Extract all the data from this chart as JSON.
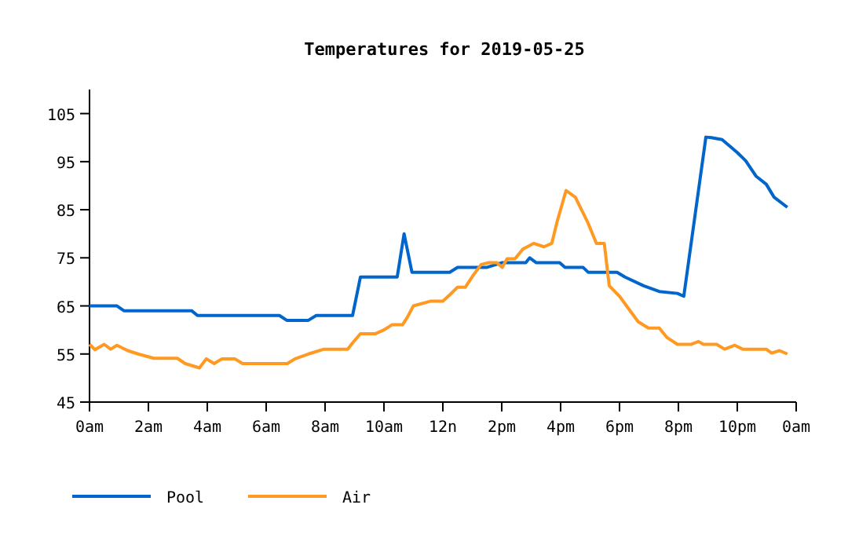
{
  "chart_data": {
    "type": "line",
    "title": "Temperatures for 2019-05-25",
    "xlim": [
      "2019-05-25T00:00",
      "2019-05-26T00:00"
    ],
    "xticks": [
      {
        "value": "2019-05-25T00:00",
        "label": "0am"
      },
      {
        "value": "2019-05-25T02:00",
        "label": "2am"
      },
      {
        "value": "2019-05-25T04:00",
        "label": "4am"
      },
      {
        "value": "2019-05-25T06:00",
        "label": "6am"
      },
      {
        "value": "2019-05-25T08:00",
        "label": "8am"
      },
      {
        "value": "2019-05-25T10:00",
        "label": "10am"
      },
      {
        "value": "2019-05-25T12:00",
        "label": "12n"
      },
      {
        "value": "2019-05-25T14:00",
        "label": "2pm"
      },
      {
        "value": "2019-05-25T16:00",
        "label": "4pm"
      },
      {
        "value": "2019-05-25T18:00",
        "label": "6pm"
      },
      {
        "value": "2019-05-25T20:00",
        "label": "8pm"
      },
      {
        "value": "2019-05-25T22:00",
        "label": "10pm"
      },
      {
        "value": "2019-05-26T00:00",
        "label": "0am"
      }
    ],
    "ylim": [
      45,
      110
    ],
    "yticks": [
      45,
      55,
      65,
      75,
      85,
      95,
      105
    ],
    "grid": false,
    "legend": "bottom left",
    "marker": "none",
    "line_style": "solid",
    "series": [
      {
        "name": "Pool",
        "color": "#0066cc",
        "x": [
          "2019-05-25T00:00",
          "2019-05-25T00:56",
          "2019-05-25T01:10",
          "2019-05-25T03:28",
          "2019-05-25T03:40",
          "2019-05-25T06:27",
          "2019-05-25T06:42",
          "2019-05-25T07:26",
          "2019-05-25T07:42",
          "2019-05-25T08:56",
          "2019-05-25T09:12",
          "2019-05-25T10:27",
          "2019-05-25T10:41",
          "2019-05-25T10:57",
          "2019-05-25T11:54",
          "2019-05-25T12:14",
          "2019-05-25T12:30",
          "2019-05-25T13:29",
          "2019-05-25T14:01",
          "2019-05-25T14:49",
          "2019-05-25T14:57",
          "2019-05-25T15:10",
          "2019-05-25T15:58",
          "2019-05-25T16:09",
          "2019-05-25T16:46",
          "2019-05-25T16:56",
          "2019-05-25T17:55",
          "2019-05-25T18:11",
          "2019-05-25T18:49",
          "2019-05-25T19:21",
          "2019-05-25T19:58",
          "2019-05-25T20:11",
          "2019-05-25T20:56",
          "2019-05-25T21:07",
          "2019-05-25T21:29",
          "2019-05-25T22:00",
          "2019-05-25T22:17",
          "2019-05-25T22:38",
          "2019-05-25T22:59",
          "2019-05-25T23:15",
          "2019-05-25T23:42"
        ],
        "values": [
          65,
          65,
          64,
          64,
          63,
          63,
          62,
          62,
          63,
          63,
          71,
          71,
          80,
          72,
          72,
          72,
          73,
          73,
          74,
          74,
          75,
          74,
          74,
          73,
          73,
          72,
          72,
          71,
          69.2,
          68,
          67.6,
          67,
          100.1,
          100,
          99.6,
          96.9,
          95.2,
          92,
          90.3,
          87.6,
          85.5
        ]
      },
      {
        "name": "Air",
        "color": "#ff9922",
        "x": [
          "2019-05-25T00:00",
          "2019-05-25T00:11",
          "2019-05-25T00:30",
          "2019-05-25T00:43",
          "2019-05-25T00:56",
          "2019-05-25T01:18",
          "2019-05-25T01:39",
          "2019-05-25T02:11",
          "2019-05-25T02:59",
          "2019-05-25T03:15",
          "2019-05-25T03:44",
          "2019-05-25T03:58",
          "2019-05-25T04:14",
          "2019-05-25T04:30",
          "2019-05-25T04:56",
          "2019-05-25T05:12",
          "2019-05-25T06:43",
          "2019-05-25T06:59",
          "2019-05-25T07:26",
          "2019-05-25T07:58",
          "2019-05-25T08:46",
          "2019-05-25T08:56",
          "2019-05-25T09:12",
          "2019-05-25T09:42",
          "2019-05-25T10:00",
          "2019-05-25T10:17",
          "2019-05-25T10:38",
          "2019-05-25T10:48",
          "2019-05-25T11:00",
          "2019-05-25T11:36",
          "2019-05-25T12:00",
          "2019-05-25T12:14",
          "2019-05-25T12:30",
          "2019-05-25T12:46",
          "2019-05-25T13:02",
          "2019-05-25T13:18",
          "2019-05-25T13:34",
          "2019-05-25T13:50",
          "2019-05-25T14:01",
          "2019-05-25T14:11",
          "2019-05-25T14:27",
          "2019-05-25T14:43",
          "2019-05-25T15:05",
          "2019-05-25T15:26",
          "2019-05-25T15:42",
          "2019-05-25T15:52",
          "2019-05-25T16:11",
          "2019-05-25T16:30",
          "2019-05-25T16:56",
          "2019-05-25T17:13",
          "2019-05-25T17:29",
          "2019-05-25T17:39",
          "2019-05-25T18:00",
          "2019-05-25T18:38",
          "2019-05-25T18:59",
          "2019-05-25T19:21",
          "2019-05-25T19:37",
          "2019-05-25T19:58",
          "2019-05-25T20:25",
          "2019-05-25T20:41",
          "2019-05-25T20:51",
          "2019-05-25T21:18",
          "2019-05-25T21:34",
          "2019-05-25T21:55",
          "2019-05-25T22:11",
          "2019-05-25T22:59",
          "2019-05-25T23:10",
          "2019-05-25T23:26",
          "2019-05-25T23:42"
        ],
        "values": [
          57,
          55.9,
          57,
          56,
          56.8,
          55.7,
          55,
          54.1,
          54.1,
          53,
          52.1,
          54,
          53,
          54,
          54,
          53,
          53,
          54,
          55,
          56,
          56,
          57.3,
          59.2,
          59.2,
          60,
          61.1,
          61.1,
          62.7,
          65,
          66,
          66,
          67.3,
          68.9,
          68.9,
          71.4,
          73.6,
          74,
          74,
          73,
          74.8,
          74.8,
          76.8,
          78,
          77.3,
          78,
          82.2,
          89,
          87.6,
          82.2,
          78,
          78,
          69.2,
          67,
          61.7,
          60.4,
          60.4,
          58.4,
          57,
          57,
          57.6,
          57,
          57,
          56,
          56.8,
          56,
          56,
          55.2,
          55.7,
          55
        ]
      }
    ]
  }
}
